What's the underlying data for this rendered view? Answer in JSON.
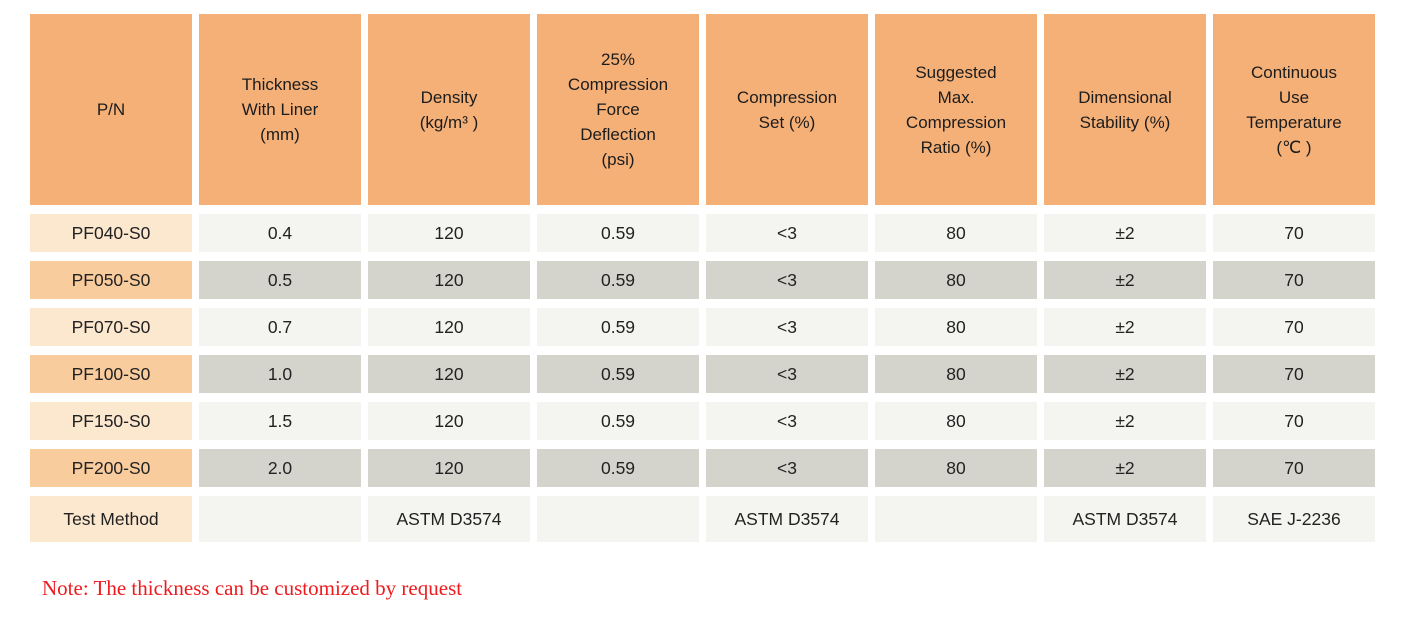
{
  "colors": {
    "header_bg": "#F5B077",
    "pn_light": "#FCE7CF",
    "pn_dark": "#F9CC9D",
    "cell_light": "#F4F4F1",
    "cell_dark": "#D4D4CC",
    "note_red": "#EC1B1E",
    "text": "#222222"
  },
  "table": {
    "headers": [
      "P/N",
      "Thickness\nWith Liner\n(mm)",
      "Density\n(kg/m³ )",
      "25%\nCompression\nForce\nDeflection\n(psi)",
      "Compression\nSet (%)",
      "Suggested\nMax.\nCompression\nRatio (%)",
      "Dimensional\nStability (%)",
      "Continuous\nUse\nTemperature\n(℃ )"
    ],
    "rows": [
      {
        "shade": "light",
        "cells": [
          "PF040-S0",
          "0.4",
          "120",
          "0.59",
          "<3",
          "80",
          "±2",
          "70"
        ]
      },
      {
        "shade": "dark",
        "cells": [
          "PF050-S0",
          "0.5",
          "120",
          "0.59",
          "<3",
          "80",
          "±2",
          "70"
        ]
      },
      {
        "shade": "light",
        "cells": [
          "PF070-S0",
          "0.7",
          "120",
          "0.59",
          "<3",
          "80",
          "±2",
          "70"
        ]
      },
      {
        "shade": "dark",
        "cells": [
          "PF100-S0",
          "1.0",
          "120",
          "0.59",
          "<3",
          "80",
          "±2",
          "70"
        ]
      },
      {
        "shade": "light",
        "cells": [
          "PF150-S0",
          "1.5",
          "120",
          "0.59",
          "<3",
          "80",
          "±2",
          "70"
        ]
      },
      {
        "shade": "dark",
        "cells": [
          "PF200-S0",
          "2.0",
          "120",
          "0.59",
          "<3",
          "80",
          "±2",
          "70"
        ]
      }
    ],
    "test_method_row": {
      "shade": "light",
      "cells": [
        "Test Method",
        "",
        "ASTM D3574",
        "",
        "ASTM D3574",
        "",
        "ASTM D3574",
        "SAE J-2236"
      ]
    }
  },
  "note": "Note: The thickness can be customized by request"
}
